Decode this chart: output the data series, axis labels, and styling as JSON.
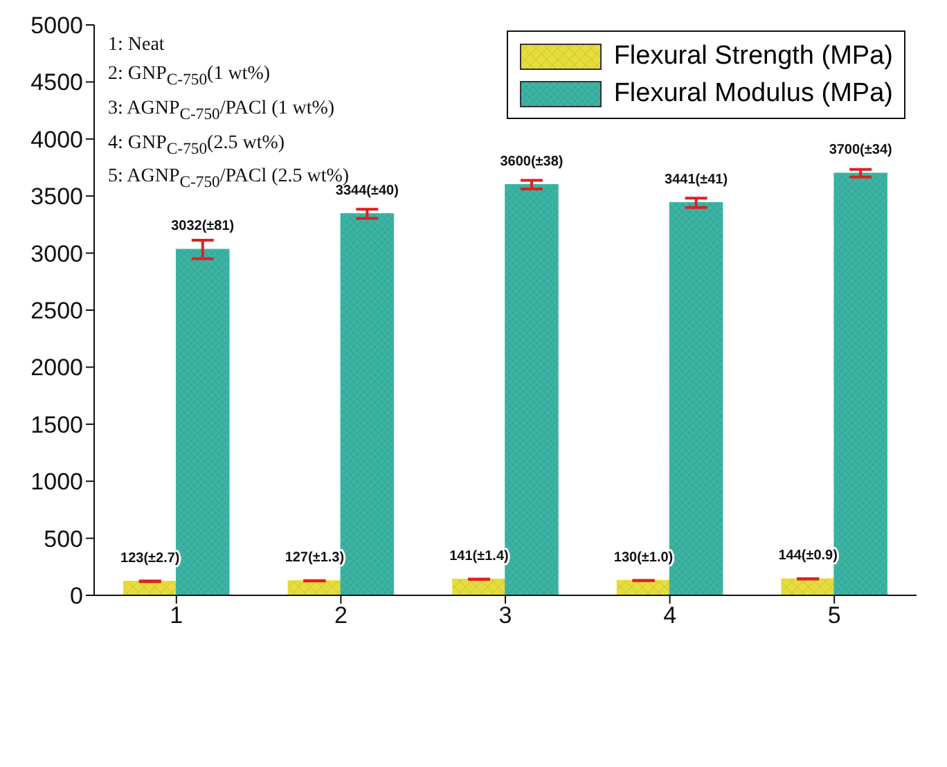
{
  "chart_data": {
    "type": "bar",
    "categories": [
      "1",
      "2",
      "3",
      "4",
      "5"
    ],
    "series": [
      {
        "name": "Flexural Strength (MPa)",
        "color": "#e6dc3c",
        "values": [
          123,
          127,
          141,
          130,
          144
        ],
        "errors": [
          2.7,
          1.3,
          1.4,
          1.0,
          0.9
        ],
        "value_labels": [
          "123(±2.7)",
          "127(±1.3)",
          "141(±1.4)",
          "130(±1.0)",
          "144(±0.9)"
        ]
      },
      {
        "name": "Flexural Modulus (MPa)",
        "color": "#3cb4a4",
        "values": [
          3032,
          3344,
          3600,
          3441,
          3700
        ],
        "errors": [
          81,
          40,
          38,
          41,
          34
        ],
        "value_labels": [
          "3032(±81)",
          "3344(±40)",
          "3600(±38)",
          "3441(±41)",
          "3700(±34)"
        ]
      }
    ],
    "ylim": [
      0,
      5000
    ],
    "yticks": [
      0,
      500,
      1000,
      1500,
      2000,
      2500,
      3000,
      3500,
      4000,
      4500,
      5000
    ],
    "grid": false,
    "legend": "top right",
    "annotations": [
      "1: Neat",
      "2: GNP$_{C-750}$(1 wt%)",
      "3: AGNP$_{C-750}$/PACl (1 wt%)",
      "4: GNP$_{C-750}$(2.5 wt%)",
      "5: AGNP$_{C-750}$/PACl (2.5 wt%)"
    ]
  }
}
